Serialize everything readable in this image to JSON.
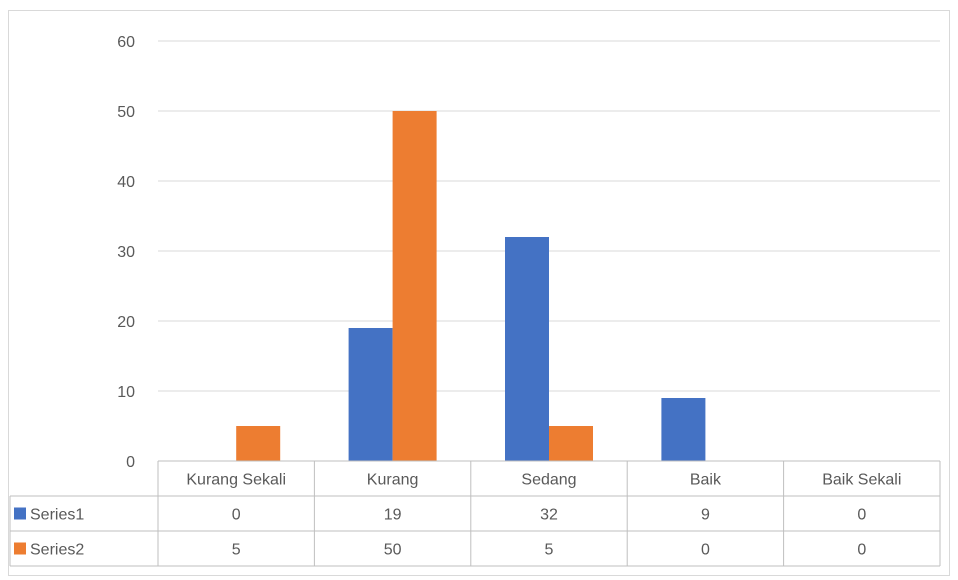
{
  "chart_data": {
    "type": "bar",
    "categories": [
      "Kurang Sekali",
      "Kurang",
      "Sedang",
      "Baik",
      "Baik Sekali"
    ],
    "series": [
      {
        "name": "Series1",
        "values": [
          0,
          19,
          32,
          9,
          0
        ],
        "color": "#4472C4"
      },
      {
        "name": "Series2",
        "values": [
          5,
          50,
          5,
          0,
          0
        ],
        "color": "#ED7D31"
      }
    ],
    "ylim": [
      0,
      60
    ],
    "yticks": [
      0,
      10,
      20,
      30,
      40,
      50,
      60
    ],
    "grid": true,
    "legend": "data-table",
    "data_table": true
  }
}
